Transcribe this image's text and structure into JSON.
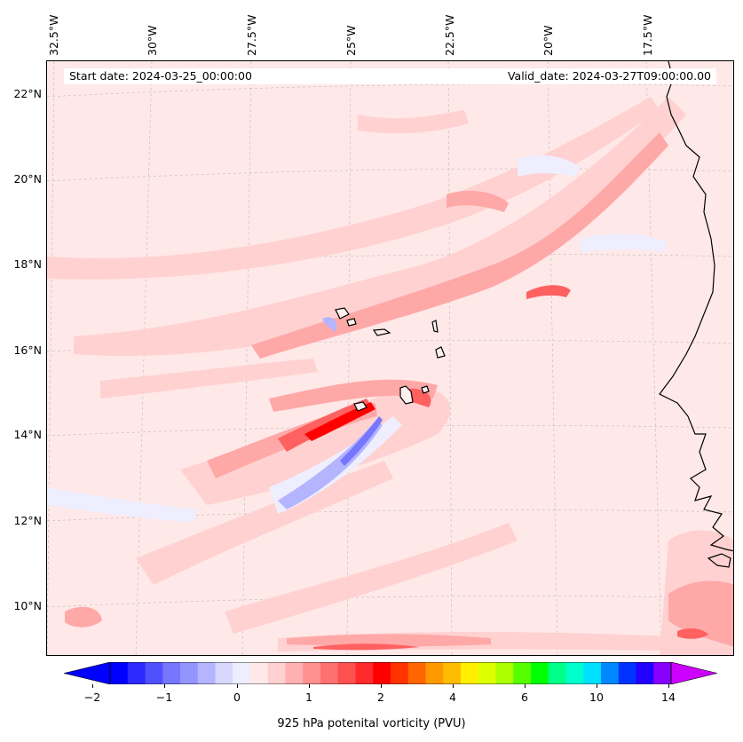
{
  "map": {
    "start_date": "Start date: 2024-03-25_00:00:00",
    "valid_date": "Valid_date: 2024-03-27T09:00:00.00",
    "lon_labels": [
      "32.5°W",
      "30°W",
      "27.5°W",
      "25°W",
      "22.5°W",
      "20°W",
      "17.5°W"
    ],
    "lat_labels": [
      "22°N",
      "20°N",
      "18°N",
      "16°N",
      "14°N",
      "12°N",
      "10°N"
    ],
    "field": "925 hPa potenital vorticity (PVU)",
    "colors": {
      "background_field": "#ffe8e8",
      "coastline": "#000000"
    }
  },
  "colorbar": {
    "label": "925 hPa potenital vorticity (PVU)",
    "tick_labels": [
      "−2",
      "−1",
      "0",
      "1",
      "2",
      "4",
      "6",
      "10",
      "14"
    ],
    "colors": [
      "#0000ff",
      "#2a2aff",
      "#5050ff",
      "#7676ff",
      "#9494ff",
      "#b4b4ff",
      "#d8d8ff",
      "#eeeeff",
      "#ffe8e8",
      "#ffd0d0",
      "#ffb0b0",
      "#ff9090",
      "#ff7070",
      "#ff5050",
      "#ff2a2a",
      "#ff0000",
      "#ff3300",
      "#ff6600",
      "#ff9900",
      "#ffbb00",
      "#ffee00",
      "#ddff00",
      "#aaff00",
      "#55ff00",
      "#00ff00",
      "#00ff88",
      "#00ffcc",
      "#00e0ff",
      "#0088ff",
      "#0033ff",
      "#2200ff",
      "#8800ff"
    ]
  }
}
